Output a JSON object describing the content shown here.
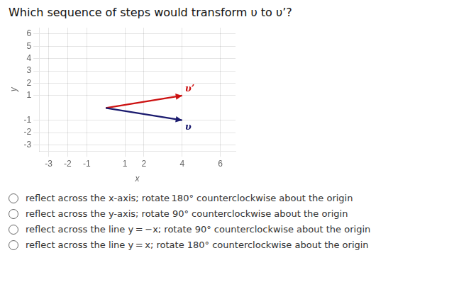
{
  "chart_data": {
    "type": "vector",
    "title": "Which sequence of steps would transform υ to υ’?",
    "xlabel": "x",
    "ylabel": "y",
    "series": [
      {
        "name": "υ",
        "color": "#1a1a6e",
        "x": [
          0,
          4
        ],
        "values": [
          0,
          -1
        ]
      },
      {
        "name": "υ’",
        "color": "#cc1111",
        "x": [
          0,
          4
        ],
        "values": [
          0,
          1
        ]
      }
    ],
    "xlim": [
      -3.5,
      6.8
    ],
    "ylim": [
      -3.5,
      6.5
    ],
    "xticks": [
      -3,
      -2,
      -1,
      1,
      2,
      4,
      6
    ],
    "yticks": [
      -3,
      -2,
      -1,
      1,
      2,
      3,
      4,
      5,
      6
    ],
    "grid": true,
    "annotations": [
      "reflect across the x-axis; rotate 180° counterclockwise about the origin",
      "reflect across the y-axis; rotate 90° counterclockwise about the origin",
      "reflect across the line y = −x; rotate 90° counterclockwise about the origin",
      "reflect across the line y = x; rotate 180° counterclockwise about the origin"
    ]
  }
}
